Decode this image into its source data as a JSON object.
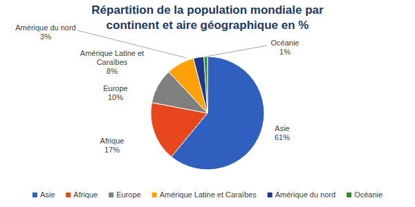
{
  "chart_data": {
    "type": "pie",
    "title": "Répartition de la population mondiale par continent et aire géographique en %",
    "categories": [
      "Asie",
      "Afrique",
      "Europe",
      "Amérique Latine et Caraïbes",
      "Amérique du nord",
      "Océanie"
    ],
    "values": [
      61,
      17,
      10,
      8,
      3,
      1
    ],
    "value_labels": [
      "61%",
      "17%",
      "10%",
      "8%",
      "3%",
      "1%"
    ],
    "colors": [
      "#2f5fbf",
      "#e8461c",
      "#7f7f7f",
      "#ffa20a",
      "#1f3a8c",
      "#2e8b2e"
    ],
    "data_labels": true,
    "legend": "bottom"
  }
}
